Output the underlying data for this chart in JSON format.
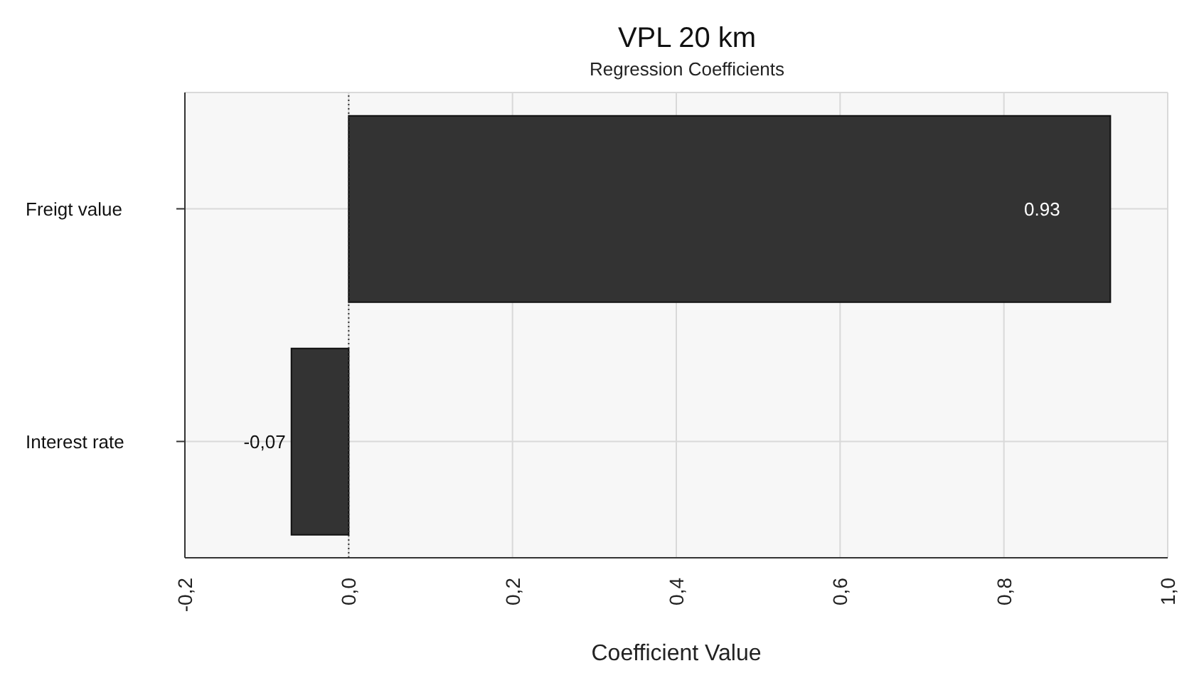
{
  "chart_data": {
    "type": "bar",
    "orientation": "horizontal",
    "title": "VPL 20 km",
    "subtitle": "Regression Coefficients",
    "xlabel": "Coefficient Value",
    "categories": [
      "Freigt value",
      "Interest rate"
    ],
    "values": [
      0.93,
      -0.07
    ],
    "color": "#333333",
    "value_labels": [
      "0.93",
      "-0,07"
    ],
    "xlim": [
      -0.2,
      1.0
    ],
    "xticks": [
      {
        "value": -0.2,
        "label": "-0,2"
      },
      {
        "value": 0,
        "label": "0,0"
      },
      {
        "value": 0.2,
        "label": "0,2"
      },
      {
        "value": 0.4,
        "label": "0,4"
      },
      {
        "value": 0.6,
        "label": "0,6"
      },
      {
        "value": 0.8,
        "label": "0,8"
      },
      {
        "value": 1.0,
        "label": "1,0"
      }
    ],
    "ref_lines": [
      {
        "axis": "x",
        "value": 0,
        "color": "#333333",
        "line_style": "dotted"
      }
    ],
    "grid": true
  }
}
